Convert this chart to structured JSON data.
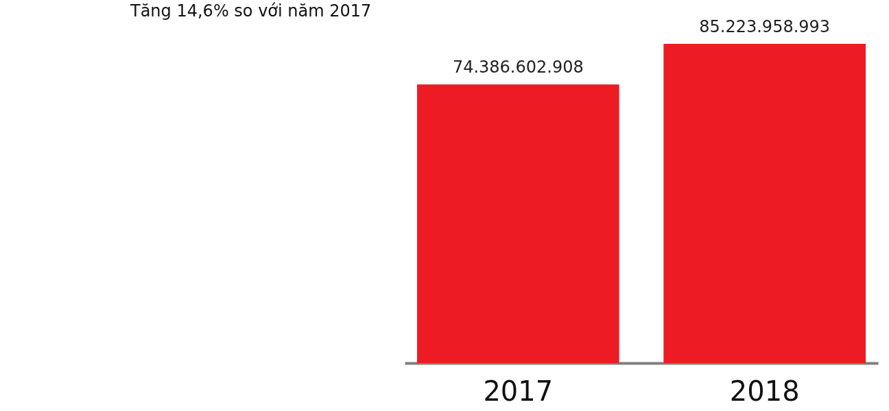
{
  "chart_data": {
    "type": "bar",
    "title": "Tăng 14,6% so với năm 2017",
    "categories": [
      "2017",
      "2018"
    ],
    "values": [
      74386602908,
      85223958993
    ],
    "value_labels": [
      "74.386.602.908",
      "85.223.958.993"
    ],
    "color": "#ed1c24"
  }
}
